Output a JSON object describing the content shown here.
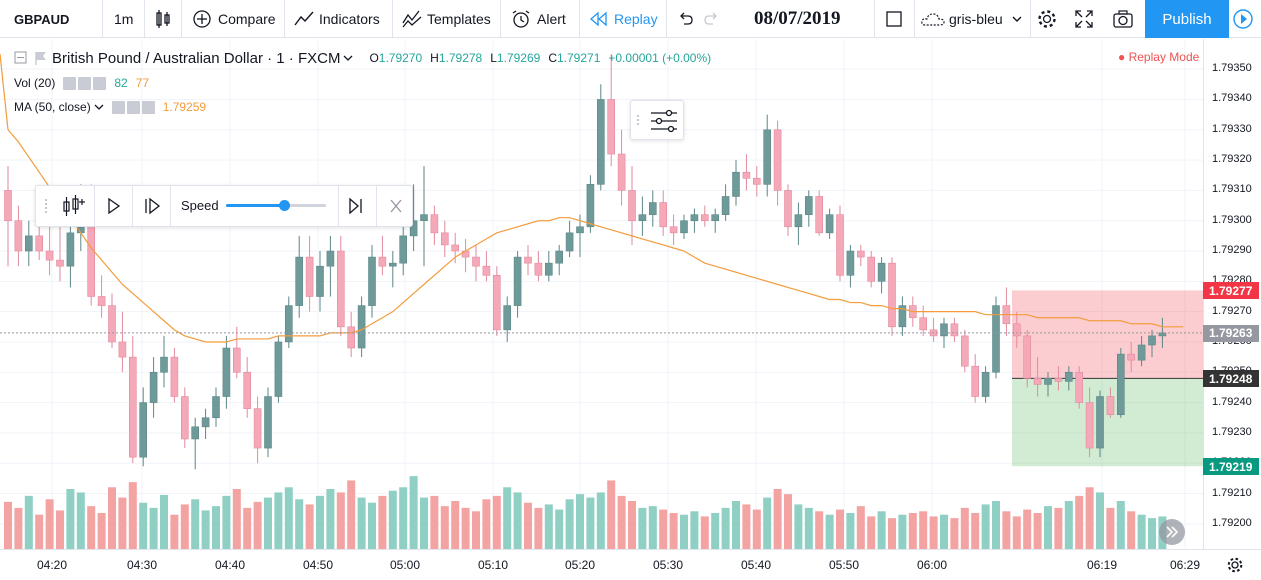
{
  "toolbar": {
    "symbol": "GBPAUD",
    "interval": "1m",
    "compare_label": "Compare",
    "indicators_label": "Indicators",
    "templates_label": "Templates",
    "alert_label": "Alert",
    "replay_label": "Replay",
    "date": "08/07/2019",
    "theme_label": "gris-bleu",
    "publish_label": "Publish"
  },
  "legend": {
    "title": "British Pound / Australian Dollar · 1 · FXCM",
    "open_label": "O",
    "open": "1.79270",
    "high_label": "H",
    "high": "1.79278",
    "low_label": "L",
    "low": "1.79269",
    "close_label": "C",
    "close": "1.79271",
    "change": "+0.00001 (+0.00%)",
    "vol_label": "Vol (20)",
    "vol_value1": "82",
    "vol_value2": "77",
    "ma_label": "MA (50, close)",
    "ma_value": "1.79259",
    "replay_mode": "Replay Mode"
  },
  "replay_panel": {
    "speed_label": "Speed",
    "speed_fraction": 0.58
  },
  "price_scale": {
    "labels": [
      "1.79350",
      "1.79340",
      "1.79330",
      "1.79320",
      "1.79310",
      "1.79300",
      "1.79290",
      "1.79280",
      "1.79270",
      "1.79260",
      "1.79250",
      "1.79240",
      "1.79230",
      "1.79220",
      "1.79210",
      "1.79200"
    ],
    "tags": [
      {
        "value": "1.79277",
        "color": "#f23645"
      },
      {
        "value": "1.79263",
        "color": "#9598a1"
      },
      {
        "value": "1.79248",
        "color": "#333333"
      },
      {
        "value": "1.79219",
        "color": "#089981"
      }
    ]
  },
  "time_scale": {
    "labels": [
      "04:20",
      "04:30",
      "04:40",
      "04:50",
      "05:00",
      "05:10",
      "05:20",
      "05:30",
      "05:40",
      "05:50",
      "06:00",
      "06:19",
      "06:29"
    ]
  },
  "colors": {
    "up": "#6f9a9a",
    "down": "#f5a9b8",
    "vol_up": "#8fcfc4",
    "vol_down": "#f4a3a3",
    "ma": "#f39c3c",
    "accent": "#2196f3"
  },
  "chart_data": {
    "type": "candlestick",
    "x_labels": [
      "04:20",
      "04:30",
      "04:40",
      "04:50",
      "05:00",
      "05:10",
      "05:20",
      "05:30",
      "05:40",
      "05:50",
      "06:00",
      "06:19",
      "06:29"
    ],
    "ylim": [
      1.79195,
      1.79355
    ],
    "candles": [
      {
        "o": 1.7931,
        "h": 1.79318,
        "l": 1.79285,
        "c": 1.793
      },
      {
        "o": 1.793,
        "h": 1.79305,
        "l": 1.79285,
        "c": 1.7929
      },
      {
        "o": 1.7929,
        "h": 1.793,
        "l": 1.79285,
        "c": 1.79295
      },
      {
        "o": 1.79295,
        "h": 1.79305,
        "l": 1.79287,
        "c": 1.7929
      },
      {
        "o": 1.7929,
        "h": 1.79298,
        "l": 1.79282,
        "c": 1.79287
      },
      {
        "o": 1.79287,
        "h": 1.793,
        "l": 1.7928,
        "c": 1.79285
      },
      {
        "o": 1.79285,
        "h": 1.793,
        "l": 1.79278,
        "c": 1.79296
      },
      {
        "o": 1.79296,
        "h": 1.79312,
        "l": 1.7929,
        "c": 1.7931
      },
      {
        "o": 1.7931,
        "h": 1.79312,
        "l": 1.79272,
        "c": 1.79275
      },
      {
        "o": 1.79275,
        "h": 1.79282,
        "l": 1.79268,
        "c": 1.79272
      },
      {
        "o": 1.79272,
        "h": 1.79276,
        "l": 1.79258,
        "c": 1.7926
      },
      {
        "o": 1.7926,
        "h": 1.7927,
        "l": 1.7925,
        "c": 1.79255
      },
      {
        "o": 1.79255,
        "h": 1.79262,
        "l": 1.7922,
        "c": 1.79222
      },
      {
        "o": 1.79222,
        "h": 1.79245,
        "l": 1.79219,
        "c": 1.7924
      },
      {
        "o": 1.7924,
        "h": 1.79255,
        "l": 1.79235,
        "c": 1.7925
      },
      {
        "o": 1.7925,
        "h": 1.79262,
        "l": 1.79245,
        "c": 1.79255
      },
      {
        "o": 1.79255,
        "h": 1.79258,
        "l": 1.7924,
        "c": 1.79242
      },
      {
        "o": 1.79242,
        "h": 1.79245,
        "l": 1.79225,
        "c": 1.79228
      },
      {
        "o": 1.79228,
        "h": 1.79235,
        "l": 1.79218,
        "c": 1.79232
      },
      {
        "o": 1.79232,
        "h": 1.79238,
        "l": 1.79228,
        "c": 1.79235
      },
      {
        "o": 1.79235,
        "h": 1.79245,
        "l": 1.79232,
        "c": 1.79242
      },
      {
        "o": 1.79242,
        "h": 1.79262,
        "l": 1.79238,
        "c": 1.79258
      },
      {
        "o": 1.79258,
        "h": 1.79265,
        "l": 1.79248,
        "c": 1.7925
      },
      {
        "o": 1.7925,
        "h": 1.79255,
        "l": 1.79235,
        "c": 1.79238
      },
      {
        "o": 1.79238,
        "h": 1.79242,
        "l": 1.7922,
        "c": 1.79225
      },
      {
        "o": 1.79225,
        "h": 1.79245,
        "l": 1.79222,
        "c": 1.79242
      },
      {
        "o": 1.79242,
        "h": 1.79262,
        "l": 1.7924,
        "c": 1.7926
      },
      {
        "o": 1.7926,
        "h": 1.79275,
        "l": 1.79258,
        "c": 1.79272
      },
      {
        "o": 1.79272,
        "h": 1.79295,
        "l": 1.79268,
        "c": 1.79288
      },
      {
        "o": 1.79288,
        "h": 1.79295,
        "l": 1.7927,
        "c": 1.79275
      },
      {
        "o": 1.79275,
        "h": 1.7929,
        "l": 1.7927,
        "c": 1.79285
      },
      {
        "o": 1.79285,
        "h": 1.79295,
        "l": 1.79275,
        "c": 1.7929
      },
      {
        "o": 1.7929,
        "h": 1.79295,
        "l": 1.79262,
        "c": 1.79265
      },
      {
        "o": 1.79265,
        "h": 1.7927,
        "l": 1.79255,
        "c": 1.79258
      },
      {
        "o": 1.79258,
        "h": 1.79275,
        "l": 1.79255,
        "c": 1.79272
      },
      {
        "o": 1.79272,
        "h": 1.79292,
        "l": 1.79268,
        "c": 1.79288
      },
      {
        "o": 1.79288,
        "h": 1.79295,
        "l": 1.79282,
        "c": 1.79285
      },
      {
        "o": 1.79285,
        "h": 1.7929,
        "l": 1.79278,
        "c": 1.79286
      },
      {
        "o": 1.79286,
        "h": 1.79298,
        "l": 1.79282,
        "c": 1.79295
      },
      {
        "o": 1.79295,
        "h": 1.79312,
        "l": 1.7929,
        "c": 1.793
      },
      {
        "o": 1.793,
        "h": 1.79318,
        "l": 1.79285,
        "c": 1.79302
      },
      {
        "o": 1.79302,
        "h": 1.79305,
        "l": 1.79292,
        "c": 1.79296
      },
      {
        "o": 1.79296,
        "h": 1.793,
        "l": 1.79288,
        "c": 1.79292
      },
      {
        "o": 1.79292,
        "h": 1.79296,
        "l": 1.79286,
        "c": 1.7929
      },
      {
        "o": 1.7929,
        "h": 1.79294,
        "l": 1.79283,
        "c": 1.79288
      },
      {
        "o": 1.79288,
        "h": 1.79292,
        "l": 1.7928,
        "c": 1.79285
      },
      {
        "o": 1.79285,
        "h": 1.7929,
        "l": 1.7928,
        "c": 1.79282
      },
      {
        "o": 1.79282,
        "h": 1.79285,
        "l": 1.79262,
        "c": 1.79264
      },
      {
        "o": 1.79264,
        "h": 1.79275,
        "l": 1.7926,
        "c": 1.79272
      },
      {
        "o": 1.79272,
        "h": 1.7929,
        "l": 1.79268,
        "c": 1.79288
      },
      {
        "o": 1.79288,
        "h": 1.79292,
        "l": 1.79282,
        "c": 1.79286
      },
      {
        "o": 1.79286,
        "h": 1.7929,
        "l": 1.7928,
        "c": 1.79282
      },
      {
        "o": 1.79282,
        "h": 1.7929,
        "l": 1.7928,
        "c": 1.79286
      },
      {
        "o": 1.79286,
        "h": 1.79292,
        "l": 1.79282,
        "c": 1.7929
      },
      {
        "o": 1.7929,
        "h": 1.793,
        "l": 1.79288,
        "c": 1.79296
      },
      {
        "o": 1.79296,
        "h": 1.79302,
        "l": 1.79288,
        "c": 1.79298
      },
      {
        "o": 1.79298,
        "h": 1.79315,
        "l": 1.79296,
        "c": 1.79312
      },
      {
        "o": 1.79312,
        "h": 1.79345,
        "l": 1.7931,
        "c": 1.7934
      },
      {
        "o": 1.7934,
        "h": 1.79355,
        "l": 1.79318,
        "c": 1.79322
      },
      {
        "o": 1.79322,
        "h": 1.7933,
        "l": 1.79305,
        "c": 1.7931
      },
      {
        "o": 1.7931,
        "h": 1.79318,
        "l": 1.79292,
        "c": 1.793
      },
      {
        "o": 1.793,
        "h": 1.79308,
        "l": 1.79295,
        "c": 1.79302
      },
      {
        "o": 1.79302,
        "h": 1.7931,
        "l": 1.79298,
        "c": 1.79306
      },
      {
        "o": 1.79306,
        "h": 1.7931,
        "l": 1.79295,
        "c": 1.79298
      },
      {
        "o": 1.79298,
        "h": 1.79302,
        "l": 1.79292,
        "c": 1.79296
      },
      {
        "o": 1.79296,
        "h": 1.79302,
        "l": 1.79294,
        "c": 1.793
      },
      {
        "o": 1.793,
        "h": 1.79304,
        "l": 1.79296,
        "c": 1.79302
      },
      {
        "o": 1.79302,
        "h": 1.79305,
        "l": 1.79298,
        "c": 1.793
      },
      {
        "o": 1.793,
        "h": 1.79304,
        "l": 1.79296,
        "c": 1.79302
      },
      {
        "o": 1.79302,
        "h": 1.79312,
        "l": 1.793,
        "c": 1.79308
      },
      {
        "o": 1.79308,
        "h": 1.7932,
        "l": 1.79305,
        "c": 1.79316
      },
      {
        "o": 1.79316,
        "h": 1.79322,
        "l": 1.7931,
        "c": 1.79314
      },
      {
        "o": 1.79314,
        "h": 1.79318,
        "l": 1.79308,
        "c": 1.79312
      },
      {
        "o": 1.79312,
        "h": 1.79335,
        "l": 1.79308,
        "c": 1.7933
      },
      {
        "o": 1.7933,
        "h": 1.79333,
        "l": 1.79305,
        "c": 1.7931
      },
      {
        "o": 1.7931,
        "h": 1.79312,
        "l": 1.79295,
        "c": 1.79298
      },
      {
        "o": 1.79298,
        "h": 1.79306,
        "l": 1.79292,
        "c": 1.79302
      },
      {
        "o": 1.79302,
        "h": 1.7931,
        "l": 1.79298,
        "c": 1.79308
      },
      {
        "o": 1.79308,
        "h": 1.7931,
        "l": 1.79295,
        "c": 1.79296
      },
      {
        "o": 1.79296,
        "h": 1.79304,
        "l": 1.79294,
        "c": 1.79302
      },
      {
        "o": 1.79302,
        "h": 1.79305,
        "l": 1.7928,
        "c": 1.79282
      },
      {
        "o": 1.79282,
        "h": 1.79292,
        "l": 1.79278,
        "c": 1.7929
      },
      {
        "o": 1.7929,
        "h": 1.79292,
        "l": 1.79285,
        "c": 1.79288
      },
      {
        "o": 1.79288,
        "h": 1.7929,
        "l": 1.79278,
        "c": 1.7928
      },
      {
        "o": 1.7928,
        "h": 1.79288,
        "l": 1.79276,
        "c": 1.79286
      },
      {
        "o": 1.79286,
        "h": 1.79288,
        "l": 1.79262,
        "c": 1.79265
      },
      {
        "o": 1.79265,
        "h": 1.79275,
        "l": 1.79262,
        "c": 1.79272
      },
      {
        "o": 1.79272,
        "h": 1.79275,
        "l": 1.79265,
        "c": 1.79268
      },
      {
        "o": 1.79268,
        "h": 1.79272,
        "l": 1.79262,
        "c": 1.79264
      },
      {
        "o": 1.79264,
        "h": 1.79268,
        "l": 1.7926,
        "c": 1.79262
      },
      {
        "o": 1.79262,
        "h": 1.79268,
        "l": 1.79258,
        "c": 1.79266
      },
      {
        "o": 1.79266,
        "h": 1.79268,
        "l": 1.7926,
        "c": 1.79262
      },
      {
        "o": 1.79262,
        "h": 1.79264,
        "l": 1.7925,
        "c": 1.79252
      },
      {
        "o": 1.79252,
        "h": 1.79256,
        "l": 1.7924,
        "c": 1.79242
      },
      {
        "o": 1.79242,
        "h": 1.79252,
        "l": 1.7924,
        "c": 1.7925
      },
      {
        "o": 1.7925,
        "h": 1.79275,
        "l": 1.79248,
        "c": 1.79272
      },
      {
        "o": 1.79272,
        "h": 1.79278,
        "l": 1.79262,
        "c": 1.79266
      },
      {
        "o": 1.79266,
        "h": 1.7927,
        "l": 1.79258,
        "c": 1.79262
      },
      {
        "o": 1.79262,
        "h": 1.79264,
        "l": 1.79245,
        "c": 1.79248
      },
      {
        "o": 1.79248,
        "h": 1.79255,
        "l": 1.79242,
        "c": 1.79246
      },
      {
        "o": 1.79246,
        "h": 1.7925,
        "l": 1.79242,
        "c": 1.79248
      },
      {
        "o": 1.79248,
        "h": 1.79252,
        "l": 1.79244,
        "c": 1.79247
      },
      {
        "o": 1.79247,
        "h": 1.79252,
        "l": 1.79244,
        "c": 1.7925
      },
      {
        "o": 1.7925,
        "h": 1.79252,
        "l": 1.79238,
        "c": 1.7924
      },
      {
        "o": 1.7924,
        "h": 1.79245,
        "l": 1.79222,
        "c": 1.79225
      },
      {
        "o": 1.79225,
        "h": 1.79244,
        "l": 1.79222,
        "c": 1.79242
      },
      {
        "o": 1.79242,
        "h": 1.79245,
        "l": 1.79235,
        "c": 1.79236
      },
      {
        "o": 1.79236,
        "h": 1.79258,
        "l": 1.79235,
        "c": 1.79256
      },
      {
        "o": 1.79256,
        "h": 1.7926,
        "l": 1.7925,
        "c": 1.79254
      },
      {
        "o": 1.79254,
        "h": 1.79262,
        "l": 1.79252,
        "c": 1.79259
      },
      {
        "o": 1.79259,
        "h": 1.79264,
        "l": 1.79255,
        "c": 1.79262
      },
      {
        "o": 1.79262,
        "h": 1.79268,
        "l": 1.79258,
        "c": 1.79263
      }
    ],
    "volume": [
      55,
      48,
      62,
      40,
      58,
      45,
      70,
      66,
      50,
      42,
      72,
      60,
      78,
      54,
      48,
      63,
      40,
      52,
      58,
      45,
      50,
      62,
      70,
      48,
      55,
      60,
      66,
      72,
      58,
      52,
      62,
      70,
      66,
      80,
      60,
      54,
      62,
      68,
      72,
      85,
      60,
      62,
      50,
      56,
      48,
      44,
      58,
      62,
      72,
      66,
      54,
      48,
      52,
      46,
      58,
      64,
      60,
      66,
      80,
      62,
      56,
      48,
      50,
      46,
      42,
      40,
      44,
      38,
      42,
      48,
      56,
      52,
      46,
      60,
      70,
      64,
      52,
      48,
      44,
      40,
      46,
      42,
      50,
      38,
      44,
      36,
      40,
      42,
      44,
      38,
      40,
      36,
      48,
      42,
      52,
      56,
      44,
      38,
      46,
      42,
      50,
      48,
      56,
      62,
      72,
      66,
      48,
      56,
      44,
      40,
      36,
      38,
      42,
      44,
      40
    ],
    "ma": [
      1.7933,
      1.79326,
      1.79321,
      1.79316,
      1.79311,
      1.79306,
      1.79301,
      1.79296,
      1.79291,
      1.79287,
      1.79283,
      1.79279,
      1.79276,
      1.79273,
      1.7927,
      1.79267,
      1.79264,
      1.79262,
      1.79261,
      1.7926,
      1.7926,
      1.7926,
      1.79261,
      1.79261,
      1.79261,
      1.79261,
      1.79262,
      1.79262,
      1.79262,
      1.79262,
      1.79262,
      1.79263,
      1.79263,
      1.79263,
      1.79264,
      1.79266,
      1.79268,
      1.7927,
      1.79273,
      1.79276,
      1.79279,
      1.79282,
      1.79285,
      1.79288,
      1.7929,
      1.79292,
      1.79294,
      1.79296,
      1.79297,
      1.79298,
      1.79299,
      1.793,
      1.793,
      1.79301,
      1.79301,
      1.793,
      1.79299,
      1.79298,
      1.79297,
      1.79296,
      1.79295,
      1.79294,
      1.79293,
      1.79292,
      1.79291,
      1.7929,
      1.79288,
      1.79286,
      1.79285,
      1.79284,
      1.79283,
      1.79282,
      1.79281,
      1.7928,
      1.79279,
      1.79278,
      1.79277,
      1.79276,
      1.79275,
      1.79274,
      1.79274,
      1.79273,
      1.79273,
      1.79272,
      1.79272,
      1.79271,
      1.79271,
      1.7927,
      1.7927,
      1.7927,
      1.7927,
      1.7927,
      1.7927,
      1.7927,
      1.79269,
      1.79269,
      1.79269,
      1.79269,
      1.79269,
      1.79268,
      1.79268,
      1.79268,
      1.79268,
      1.79268,
      1.79267,
      1.79267,
      1.79267,
      1.79267,
      1.79266,
      1.79266,
      1.79266,
      1.79265,
      1.79265,
      1.79265
    ],
    "position": {
      "entry": 1.79248,
      "target": 1.79277,
      "stop": 1.79219
    },
    "current_price": 1.79263
  }
}
